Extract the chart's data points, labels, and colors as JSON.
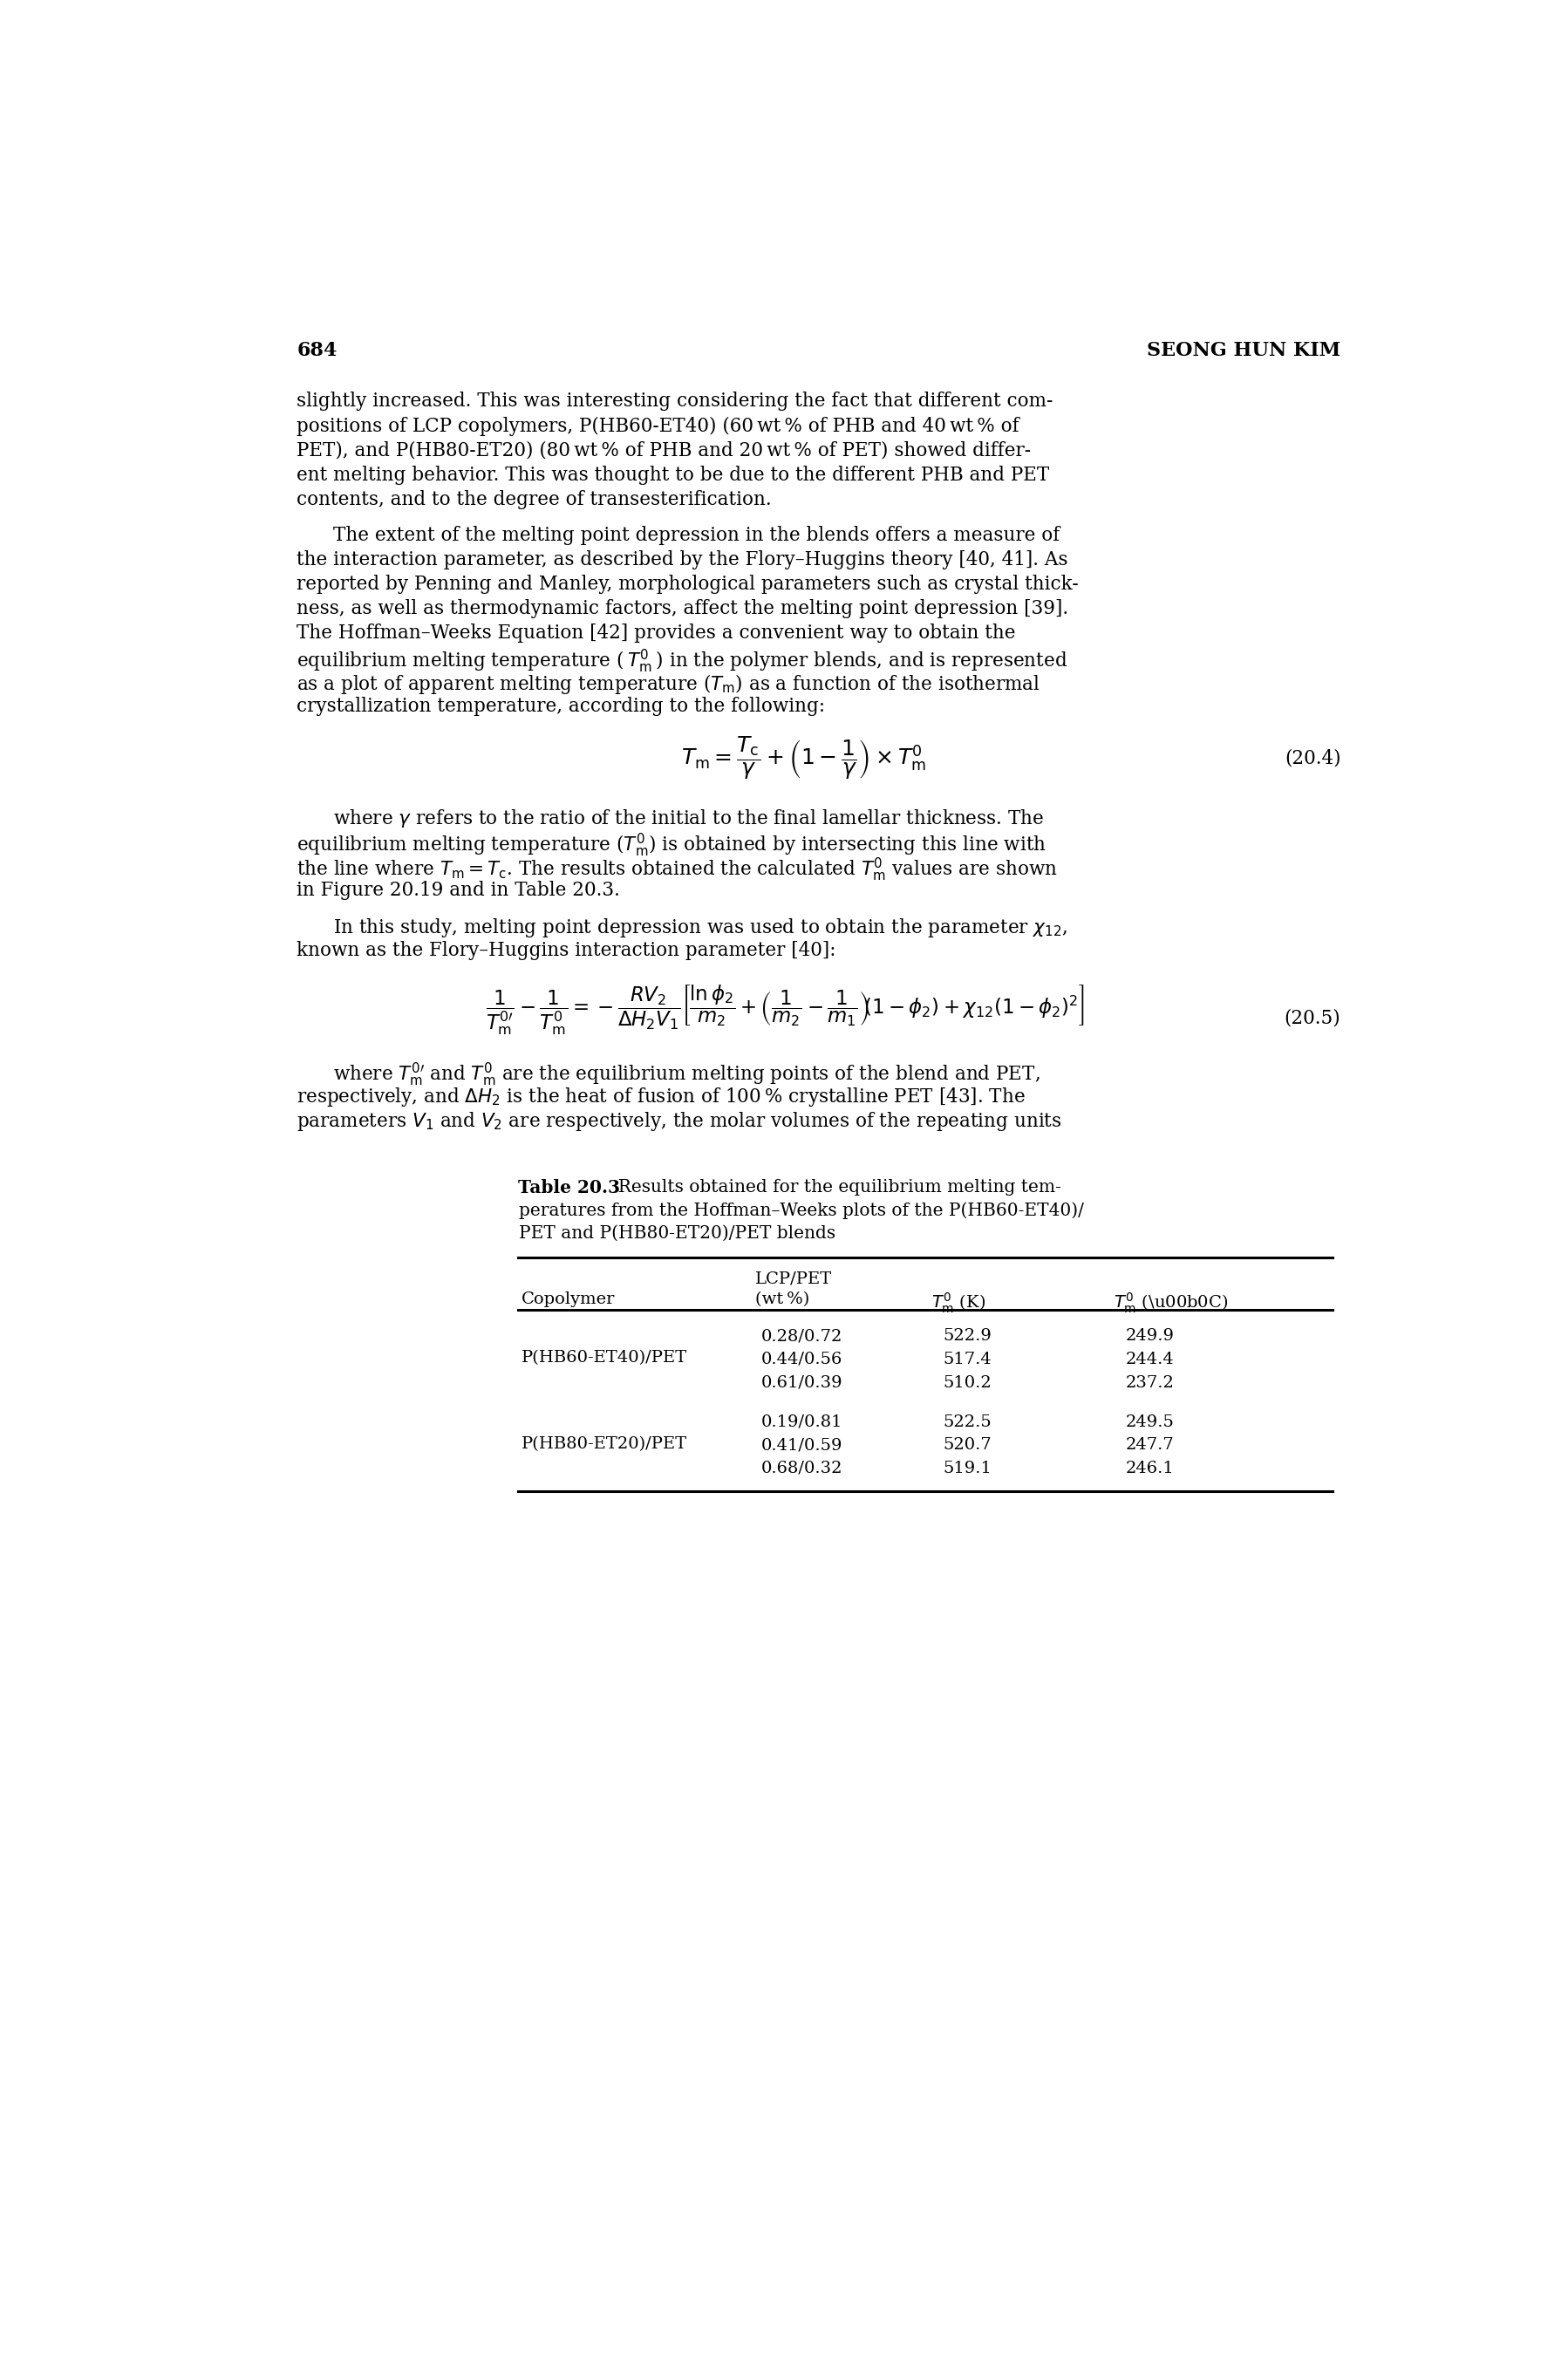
{
  "page_number": "684",
  "author": "SEONG HUN KIM",
  "para1": [
    "slightly increased. This was interesting considering the fact that different com-",
    "positions of LCP copolymers, P(HB60-ET40) (60 wt % of PHB and 40 wt % of",
    "PET), and P(HB80-ET20) (80 wt % of PHB and 20 wt % of PET) showed differ-",
    "ent melting behavior. This was thought to be due to the different PHB and PET",
    "contents, and to the degree of transesterification."
  ],
  "para2": [
    [
      true,
      "The extent of the melting point depression in the blends offers a measure of"
    ],
    [
      false,
      "the interaction parameter, as described by the Flory–Huggins theory [40, 41]. As"
    ],
    [
      false,
      "reported by Penning and Manley, morphological parameters such as crystal thick-"
    ],
    [
      false,
      "ness, as well as thermodynamic factors, affect the melting point depression [39]."
    ],
    [
      false,
      "The Hoffman–Weeks Equation [42] provides a convenient way to obtain the"
    ],
    [
      false,
      "equilibrium melting temperature ( $T_\\mathrm{m}^0$ ) in the polymer blends, and is represented"
    ],
    [
      false,
      "as a plot of apparent melting temperature ($T_\\mathrm{m}$) as a function of the isothermal"
    ],
    [
      false,
      "crystallization temperature, according to the following:"
    ]
  ],
  "eq1_label": "(20.4)",
  "para3": [
    [
      true,
      "where $\\gamma$ refers to the ratio of the initial to the final lamellar thickness. The"
    ],
    [
      false,
      "equilibrium melting temperature ($T_\\mathrm{m}^0$) is obtained by intersecting this line with"
    ],
    [
      false,
      "the line where $T_\\mathrm{m} = T_\\mathrm{c}$. The results obtained the calculated $T_\\mathrm{m}^0$ values are shown"
    ],
    [
      false,
      "in Figure 20.19 and in Table 20.3."
    ]
  ],
  "para4": [
    [
      true,
      "In this study, melting point depression was used to obtain the parameter $\\chi_{12}$,"
    ],
    [
      false,
      "known as the Flory–Huggins interaction parameter [40]:"
    ]
  ],
  "eq2_label": "(20.5)",
  "para5": [
    [
      true,
      "where $T_\\mathrm{m}^{0\\prime}$ and $T_\\mathrm{m}^0$ are the equilibrium melting points of the blend and PET,"
    ],
    [
      false,
      "respectively, and $\\Delta H_2$ is the heat of fusion of 100 % crystalline PET [43]. The"
    ],
    [
      false,
      "parameters $V_1$ and $V_2$ are respectively, the molar volumes of the repeating units"
    ]
  ],
  "table_title_bold": "Table 20.3",
  "table_title_rest": "  Results obtained for the equilibrium melting tem-\nperatures from the Hoffman–Weeks plots of the P(HB60-ET40)/\nPET and P(HB80-ET20)/PET blends",
  "table_groups": [
    {
      "name": "P(HB60-ET40)/PET",
      "rows": [
        [
          "0.28/0.72",
          "522.9",
          "249.9"
        ],
        [
          "0.44/0.56",
          "517.4",
          "244.4"
        ],
        [
          "0.61/0.39",
          "510.2",
          "237.2"
        ]
      ]
    },
    {
      "name": "P(HB80-ET20)/PET",
      "rows": [
        [
          "0.19/0.81",
          "522.5",
          "249.5"
        ],
        [
          "0.41/0.59",
          "520.7",
          "247.7"
        ],
        [
          "0.68/0.32",
          "519.1",
          "246.1"
        ]
      ]
    }
  ],
  "bg_color": "#ffffff",
  "text_color": "#000000",
  "fs_body": 15.5,
  "fs_bold": 16.0,
  "fs_table": 14.5,
  "fs_eq": 18.0,
  "lh": 0.0135,
  "ml": 0.083,
  "mr": 0.942,
  "indent": 0.03
}
